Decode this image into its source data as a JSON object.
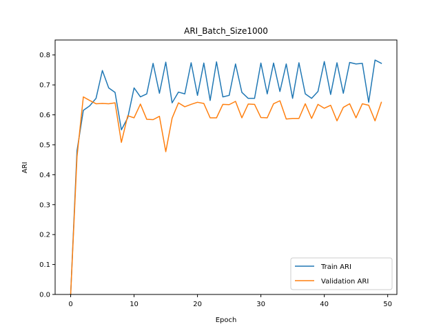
{
  "chart_data": {
    "type": "line",
    "title": "ARI_Batch_Size1000",
    "xlabel": "Epoch",
    "ylabel": "ARI",
    "xlim": [
      -2.45,
      51.45
    ],
    "ylim": [
      0.0,
      0.85
    ],
    "xticks": [
      0,
      10,
      20,
      30,
      40,
      50
    ],
    "yticks": [
      0.0,
      0.1,
      0.2,
      0.3,
      0.4,
      0.5,
      0.6,
      0.7,
      0.8
    ],
    "grid": false,
    "legend_position": "lower-right",
    "x": [
      0,
      1,
      2,
      3,
      4,
      5,
      6,
      7,
      8,
      9,
      10,
      11,
      12,
      13,
      14,
      15,
      16,
      17,
      18,
      19,
      20,
      21,
      22,
      23,
      24,
      25,
      26,
      27,
      28,
      29,
      30,
      31,
      32,
      33,
      34,
      35,
      36,
      37,
      38,
      39,
      40,
      41,
      42,
      43,
      44,
      45,
      46,
      47,
      48,
      49
    ],
    "series": [
      {
        "name": "Train ARI",
        "color": "#1f77b4",
        "values": [
          0.0,
          0.48,
          0.615,
          0.63,
          0.655,
          0.748,
          0.69,
          0.675,
          0.55,
          0.59,
          0.69,
          0.66,
          0.67,
          0.772,
          0.672,
          0.776,
          0.64,
          0.676,
          0.67,
          0.774,
          0.665,
          0.773,
          0.648,
          0.777,
          0.66,
          0.665,
          0.77,
          0.675,
          0.655,
          0.655,
          0.773,
          0.67,
          0.773,
          0.678,
          0.77,
          0.655,
          0.774,
          0.67,
          0.655,
          0.678,
          0.778,
          0.668,
          0.774,
          0.672,
          0.775,
          0.77,
          0.772,
          0.642,
          0.783,
          0.772
        ]
      },
      {
        "name": "Validation ARI",
        "color": "#ff7f0e",
        "values": [
          0.0,
          0.46,
          0.66,
          0.648,
          0.637,
          0.638,
          0.637,
          0.64,
          0.508,
          0.597,
          0.59,
          0.636,
          0.585,
          0.584,
          0.595,
          0.477,
          0.589,
          0.64,
          0.627,
          0.635,
          0.642,
          0.638,
          0.59,
          0.59,
          0.635,
          0.634,
          0.645,
          0.59,
          0.636,
          0.635,
          0.591,
          0.59,
          0.637,
          0.647,
          0.586,
          0.588,
          0.588,
          0.637,
          0.588,
          0.635,
          0.622,
          0.632,
          0.58,
          0.625,
          0.637,
          0.59,
          0.637,
          0.632,
          0.58,
          0.642
        ]
      }
    ]
  }
}
